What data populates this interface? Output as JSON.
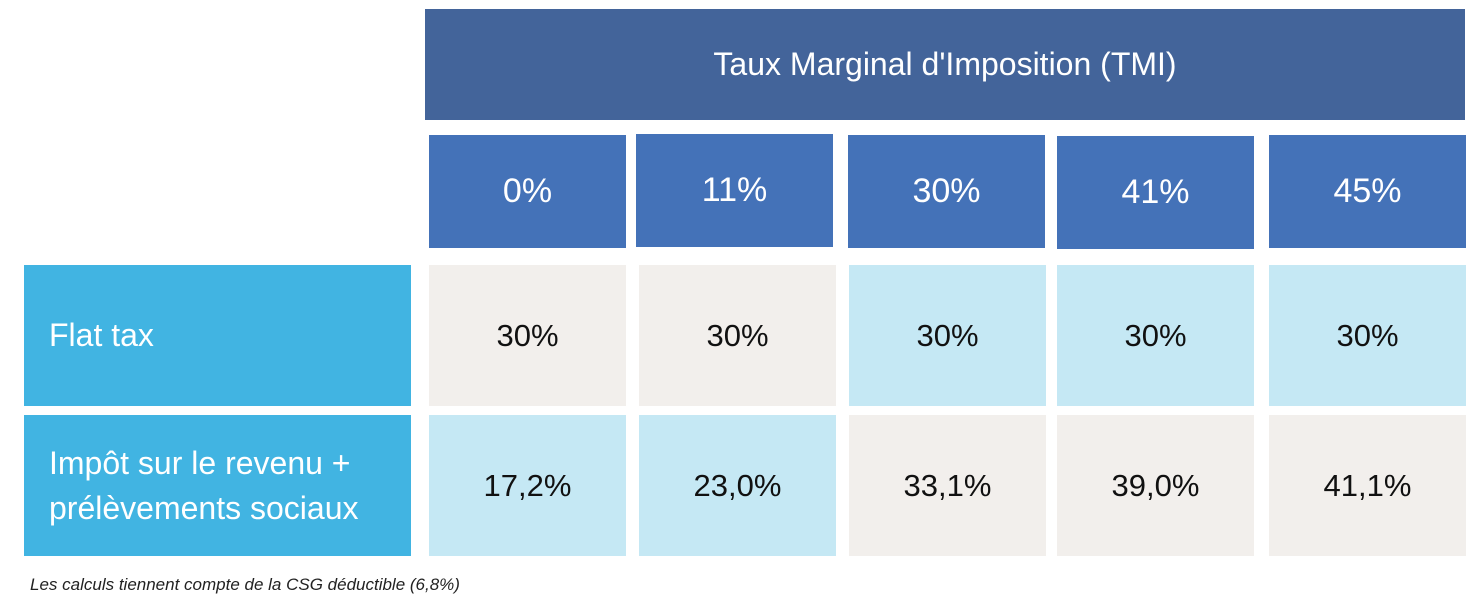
{
  "table": {
    "title": "Taux Marginal d'Imposition (TMI)",
    "columns": [
      "0%",
      "11%",
      "30%",
      "41%",
      "45%"
    ],
    "rows": [
      {
        "label": "Flat tax",
        "cells": [
          "30%",
          "30%",
          "30%",
          "30%",
          "30%"
        ]
      },
      {
        "label": "Impôt sur le revenu + prélèvements sociaux",
        "cells": [
          "17,2%",
          "23,0%",
          "33,1%",
          "39,0%",
          "41,1%"
        ]
      }
    ],
    "footnote": "Les calculs tiennent compte de la CSG déductible (6,8%)"
  }
}
